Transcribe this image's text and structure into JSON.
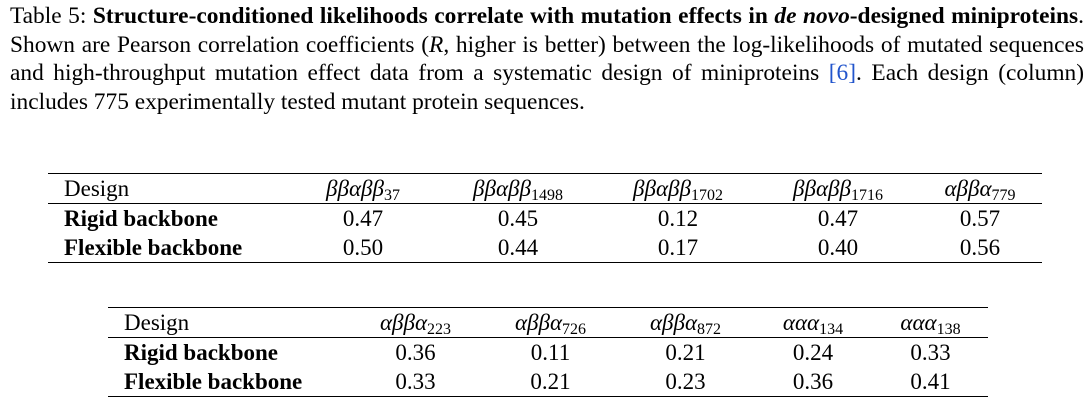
{
  "caption": {
    "prefix": "Table 5: ",
    "bold_1": "Structure-conditioned likelihoods correlate with mutation effects in ",
    "bold_italic": "de novo",
    "bold_2": "-designed miniproteins",
    "text_1": ". Shown are Pearson correlation coefficients (",
    "r_symbol": "R",
    "text_2": ", higher is better) between the log-likelihoods of mutated sequences and high-throughput mutation effect data from a systematic design of miniproteins ",
    "citation": "[6]",
    "text_3": ". Each design (column) includes 775 experimentally tested mutant protein sequences."
  },
  "tables": [
    {
      "header_label": "Design",
      "columns": [
        {
          "base": "ββαββ",
          "sub": "37"
        },
        {
          "base": "ββαββ",
          "sub": "1498"
        },
        {
          "base": "ββαββ",
          "sub": "1702"
        },
        {
          "base": "ββαββ",
          "sub": "1716"
        },
        {
          "base": "αββα",
          "sub": "779"
        }
      ],
      "rows": [
        {
          "label": "Rigid backbone",
          "values": [
            "0.47",
            "0.45",
            "0.12",
            "0.47",
            "0.57"
          ]
        },
        {
          "label": "Flexible backbone",
          "values": [
            "0.50",
            "0.44",
            "0.17",
            "0.40",
            "0.56"
          ]
        }
      ]
    },
    {
      "header_label": "Design",
      "columns": [
        {
          "base": "αββα",
          "sub": "223"
        },
        {
          "base": "αββα",
          "sub": "726"
        },
        {
          "base": "αββα",
          "sub": "872"
        },
        {
          "base": "ααα",
          "sub": "134"
        },
        {
          "base": "ααα",
          "sub": "138"
        }
      ],
      "rows": [
        {
          "label": "Rigid backbone",
          "values": [
            "0.36",
            "0.11",
            "0.21",
            "0.24",
            "0.33"
          ]
        },
        {
          "label": "Flexible backbone",
          "values": [
            "0.33",
            "0.21",
            "0.23",
            "0.36",
            "0.41"
          ]
        }
      ]
    }
  ]
}
